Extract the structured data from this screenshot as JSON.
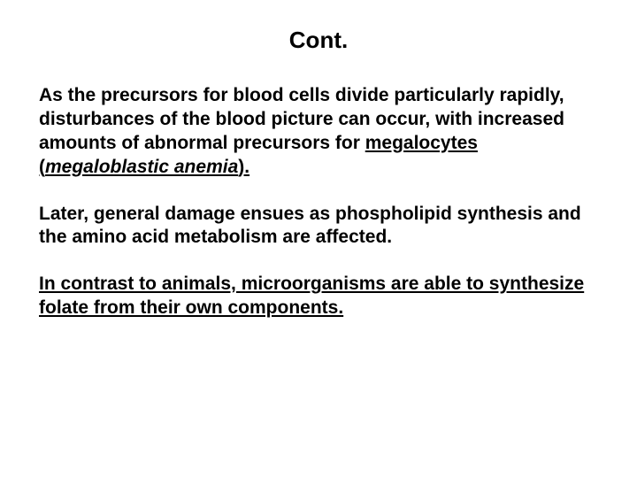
{
  "title": "Cont.",
  "paragraphs": {
    "p1_plain": "As the precursors for blood cells divide particularly rapidly, disturbances of the blood picture can occur, with increased amounts of abnormal precursors for ",
    "p1_u1": "megalocytes (",
    "p1_u2_italic": "megaloblastic anemia",
    "p1_u3": ").",
    "p2": "Later, general damage ensues as phospholipid synthesis and the amino acid metabolism are affected.",
    "p3": "In contrast to animals, microorganisms are able to synthesize folate from their own components."
  },
  "style": {
    "background_color": "#ffffff",
    "text_color": "#000000",
    "title_fontsize": 26,
    "body_fontsize": 21,
    "font_family": "Arial, Helvetica, sans-serif"
  }
}
